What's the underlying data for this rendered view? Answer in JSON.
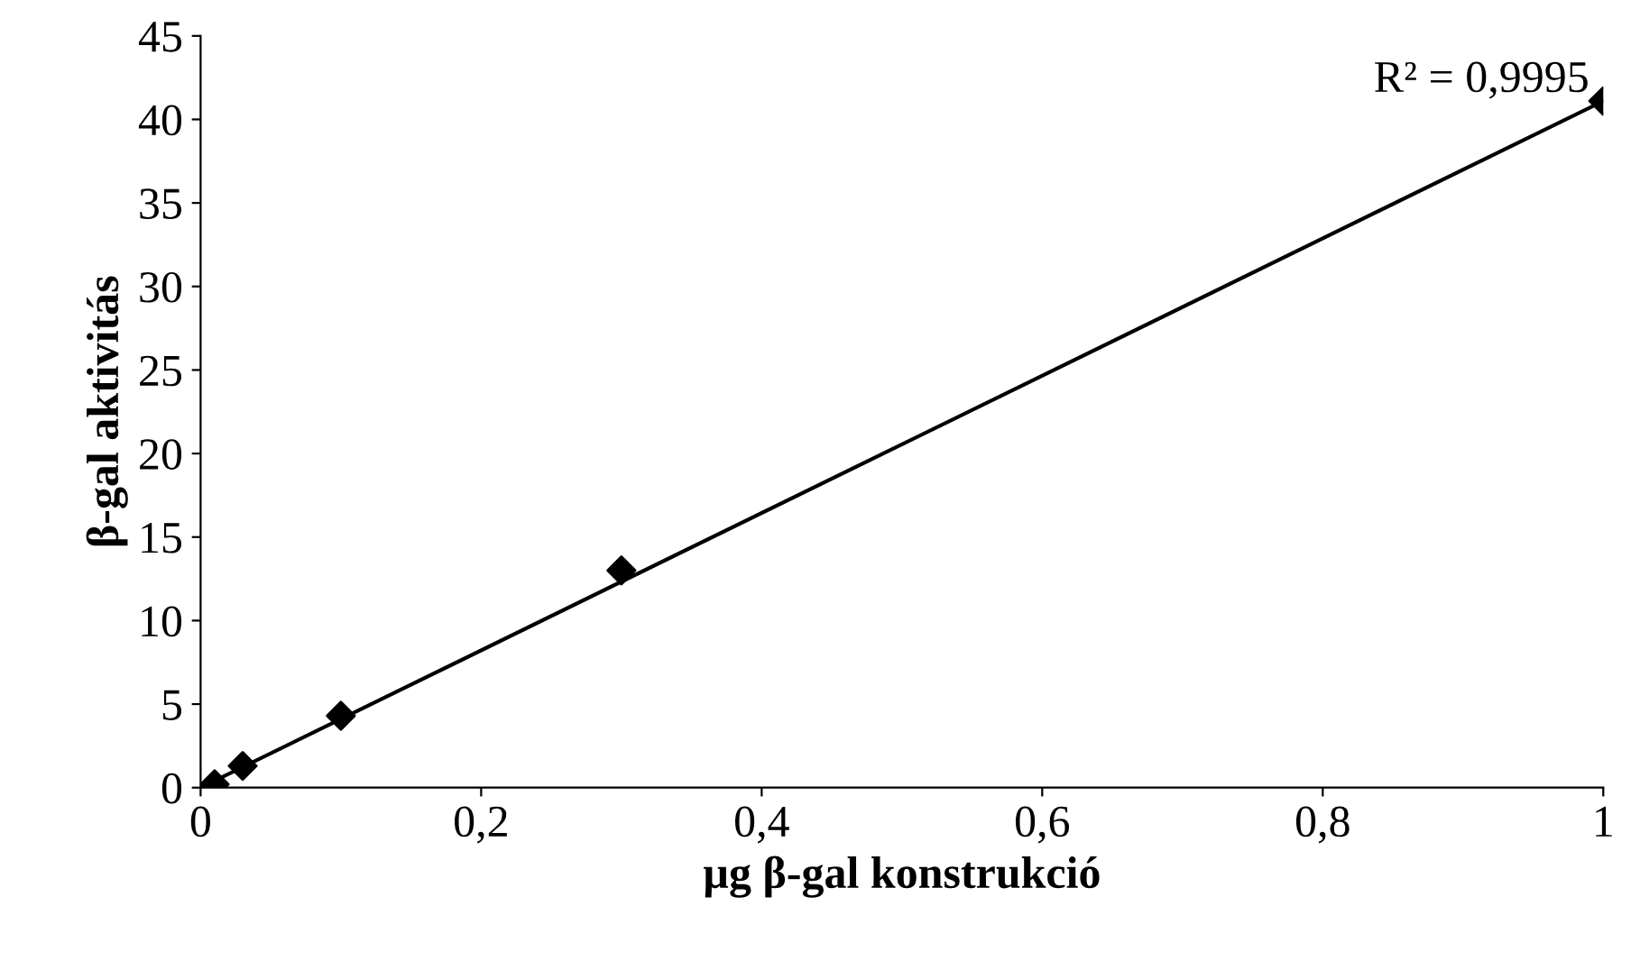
{
  "chart_data": {
    "type": "scatter",
    "xlabel": "µg β-gal konstrukció",
    "ylabel": "β-gal aktivitás",
    "series": [
      {
        "color": "#000000",
        "marker": "diamond",
        "x": [
          0.01,
          0.03,
          0.1,
          0.3,
          1
        ],
        "values": [
          0.2,
          1.3,
          4.3,
          13.0,
          41.1
        ]
      },
      {
        "type": "line",
        "color": "#000000",
        "marker": "none",
        "line_style": "solid",
        "x": [
          0,
          1
        ],
        "values": [
          0,
          41.1
        ]
      }
    ],
    "xlim": [
      0,
      1
    ],
    "xticks": [
      0,
      {
        "value": 0.2,
        "label": "0,2"
      },
      {
        "value": 0.4,
        "label": "0,4"
      },
      {
        "value": 0.6,
        "label": "0,6"
      },
      {
        "value": 0.8,
        "label": "0,8"
      },
      1
    ],
    "ylim": [
      0,
      45
    ],
    "yticks": [
      0,
      5,
      10,
      15,
      20,
      25,
      30,
      35,
      40,
      45
    ],
    "grid": false,
    "legend": false,
    "annotations": [
      "R² = 0,9995"
    ]
  }
}
